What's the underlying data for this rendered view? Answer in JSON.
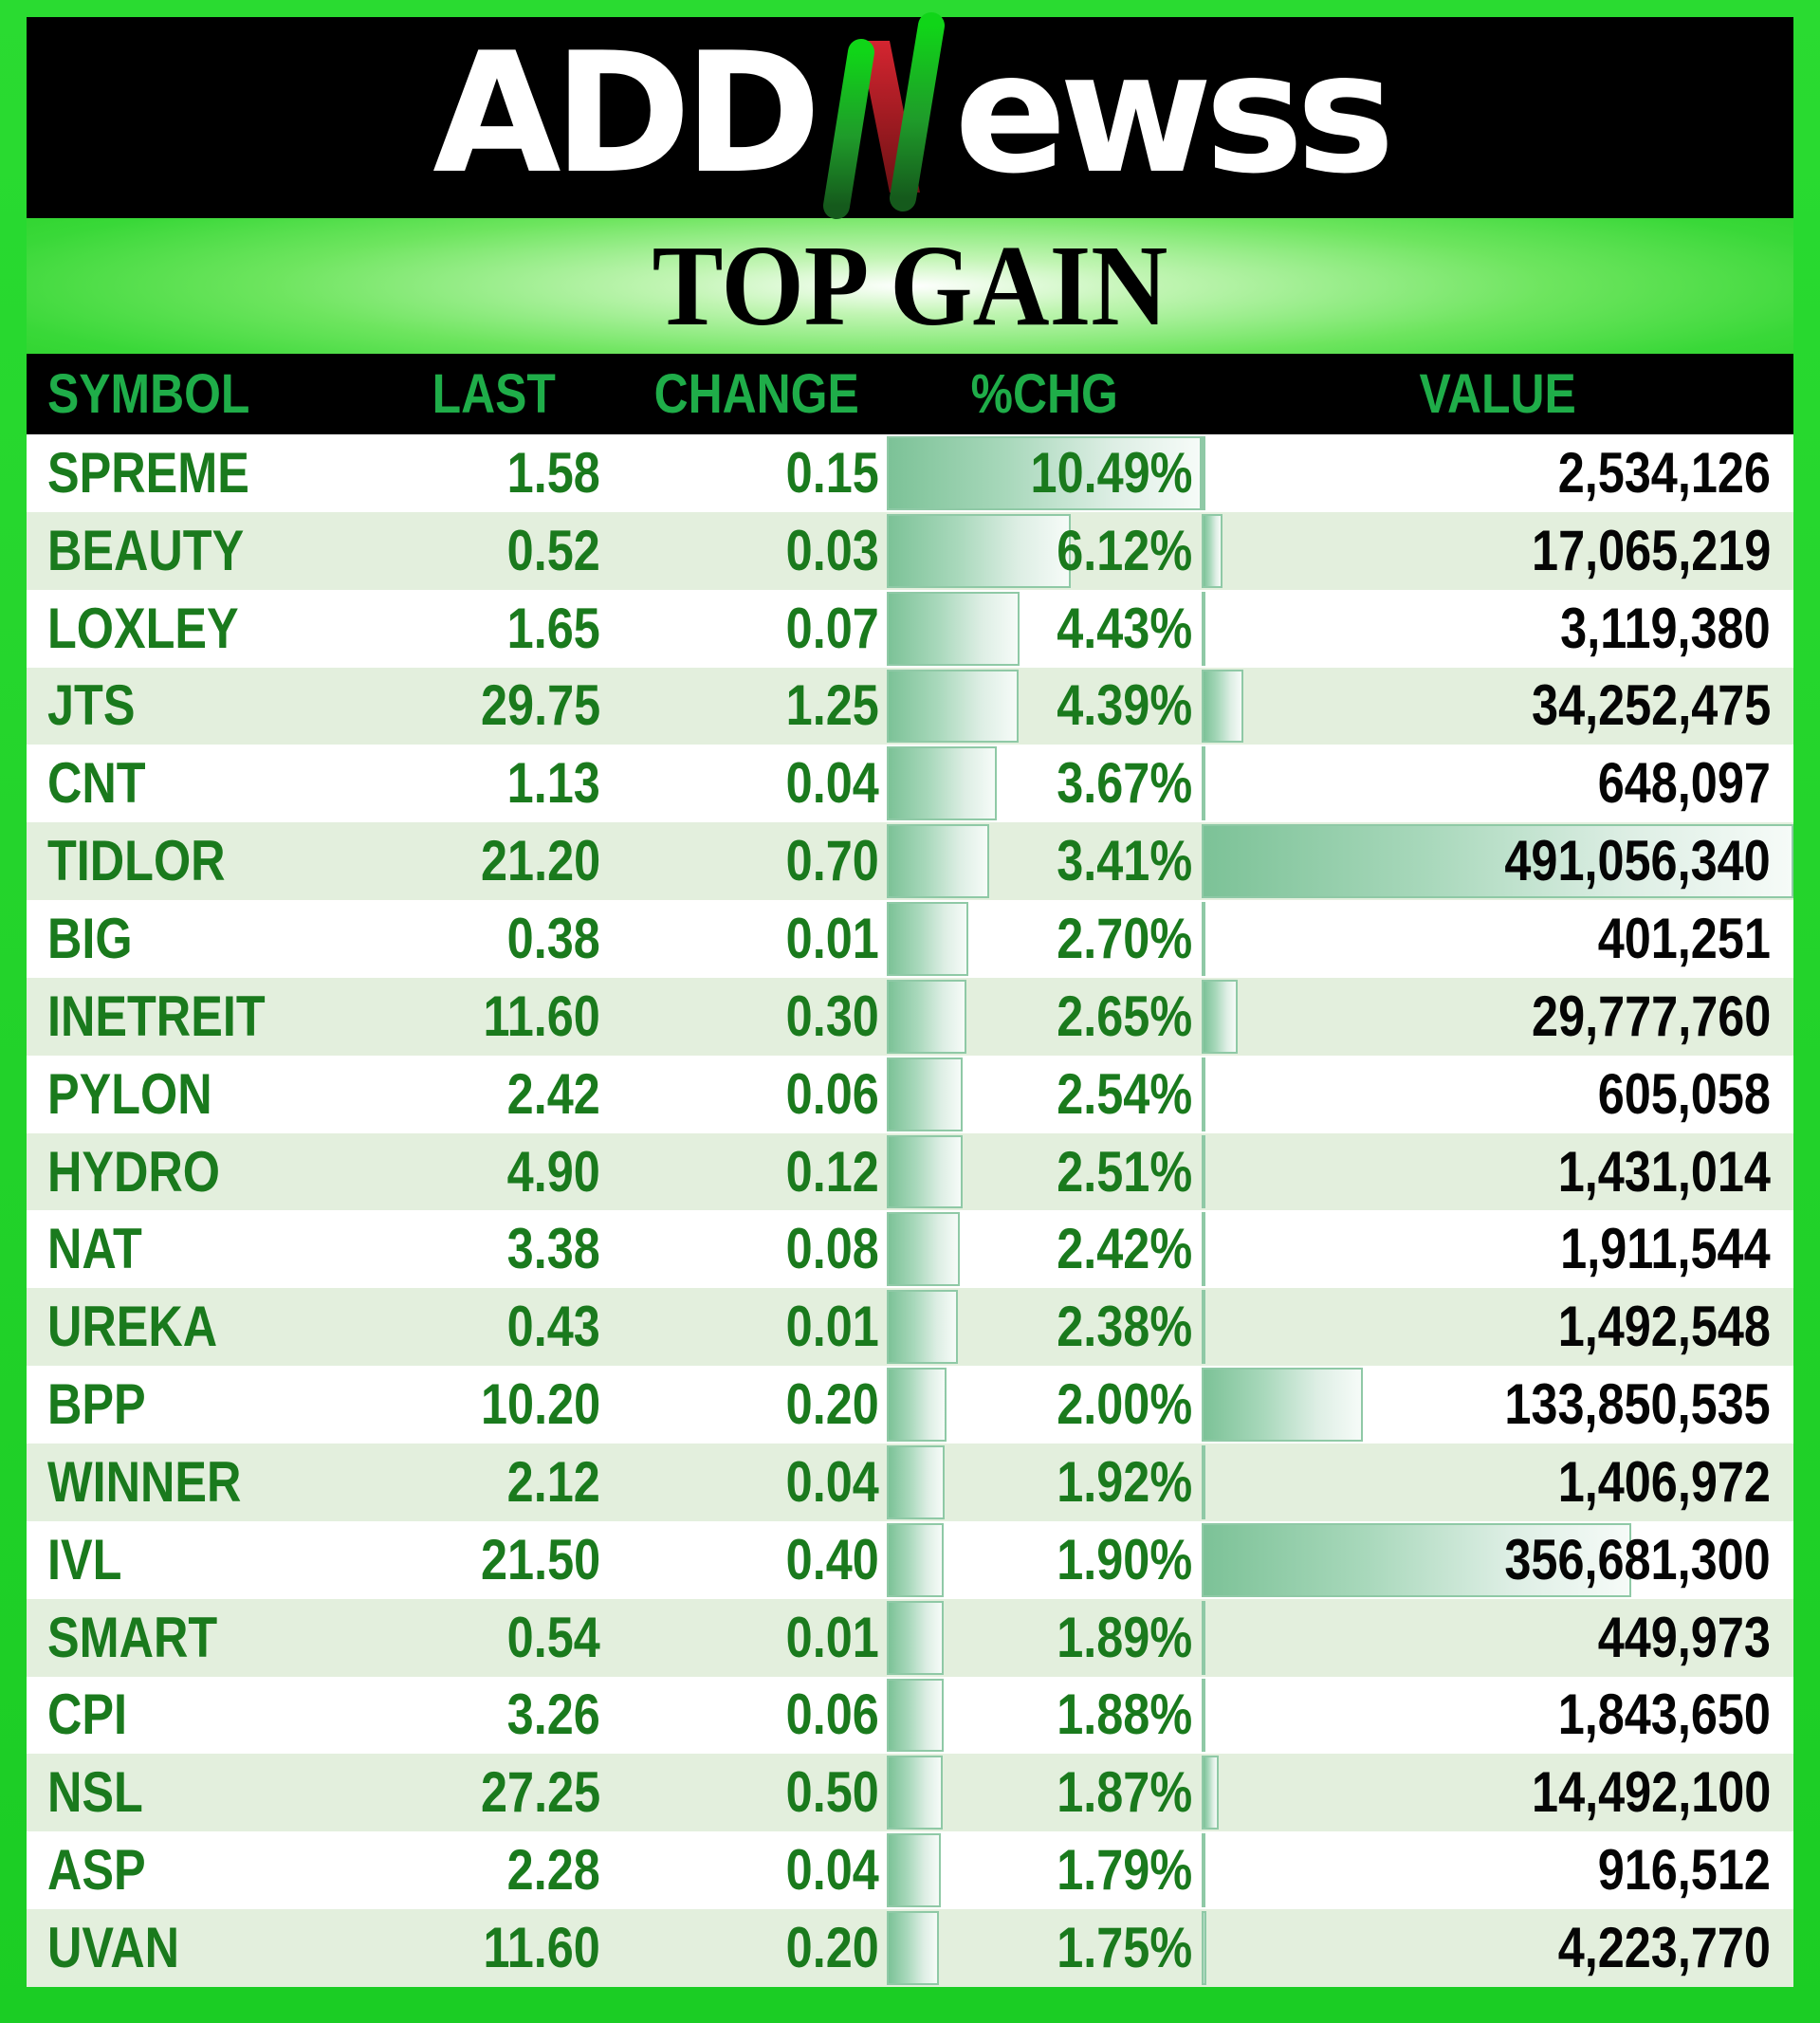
{
  "logo": {
    "text_prefix": "ADD",
    "n_letter": "N",
    "text_suffix": "ewss"
  },
  "chart_data": {
    "type": "table",
    "title": "TOP GAIN",
    "columns": [
      "SYMBOL",
      "LAST",
      "CHANGE",
      "%CHG",
      "VALUE"
    ],
    "rows": [
      {
        "symbol": "SPREME",
        "last": "1.58",
        "change": "0.15",
        "pct_chg": "10.49%",
        "value": "2,534,126"
      },
      {
        "symbol": "BEAUTY",
        "last": "0.52",
        "change": "0.03",
        "pct_chg": "6.12%",
        "value": "17,065,219"
      },
      {
        "symbol": "LOXLEY",
        "last": "1.65",
        "change": "0.07",
        "pct_chg": "4.43%",
        "value": "3,119,380"
      },
      {
        "symbol": "JTS",
        "last": "29.75",
        "change": "1.25",
        "pct_chg": "4.39%",
        "value": "34,252,475"
      },
      {
        "symbol": "CNT",
        "last": "1.13",
        "change": "0.04",
        "pct_chg": "3.67%",
        "value": "648,097"
      },
      {
        "symbol": "TIDLOR",
        "last": "21.20",
        "change": "0.70",
        "pct_chg": "3.41%",
        "value": "491,056,340"
      },
      {
        "symbol": "BIG",
        "last": "0.38",
        "change": "0.01",
        "pct_chg": "2.70%",
        "value": "401,251"
      },
      {
        "symbol": "INETREIT",
        "last": "11.60",
        "change": "0.30",
        "pct_chg": "2.65%",
        "value": "29,777,760"
      },
      {
        "symbol": "PYLON",
        "last": "2.42",
        "change": "0.06",
        "pct_chg": "2.54%",
        "value": "605,058"
      },
      {
        "symbol": "HYDRO",
        "last": "4.90",
        "change": "0.12",
        "pct_chg": "2.51%",
        "value": "1,431,014"
      },
      {
        "symbol": "NAT",
        "last": "3.38",
        "change": "0.08",
        "pct_chg": "2.42%",
        "value": "1,911,544"
      },
      {
        "symbol": "UREKA",
        "last": "0.43",
        "change": "0.01",
        "pct_chg": "2.38%",
        "value": "1,492,548"
      },
      {
        "symbol": "BPP",
        "last": "10.20",
        "change": "0.20",
        "pct_chg": "2.00%",
        "value": "133,850,535"
      },
      {
        "symbol": "WINNER",
        "last": "2.12",
        "change": "0.04",
        "pct_chg": "1.92%",
        "value": "1,406,972"
      },
      {
        "symbol": "IVL",
        "last": "21.50",
        "change": "0.40",
        "pct_chg": "1.90%",
        "value": "356,681,300"
      },
      {
        "symbol": "SMART",
        "last": "0.54",
        "change": "0.01",
        "pct_chg": "1.89%",
        "value": "449,973"
      },
      {
        "symbol": "CPI",
        "last": "3.26",
        "change": "0.06",
        "pct_chg": "1.88%",
        "value": "1,843,650"
      },
      {
        "symbol": "NSL",
        "last": "27.25",
        "change": "0.50",
        "pct_chg": "1.87%",
        "value": "14,492,100"
      },
      {
        "symbol": "ASP",
        "last": "2.28",
        "change": "0.04",
        "pct_chg": "1.79%",
        "value": "916,512"
      },
      {
        "symbol": "UVAN",
        "last": "11.60",
        "change": "0.20",
        "pct_chg": "1.75%",
        "value": "4,223,770"
      }
    ],
    "data_bars": {
      "pct_chg_scale": "bar width proportional to %CHG, max 10.49% = full column",
      "value_scale": "bar width proportional to VALUE, max 491,056,340 = full column"
    },
    "layout": {
      "legend": "none",
      "grid": "row-striping",
      "stripe_order": "white/green alternating"
    }
  },
  "colors": {
    "frame_green": "#22d22a",
    "banner_black": "#000000",
    "header_label_green": "#1fad49",
    "body_text_green": "#1a7a1d",
    "value_text_black": "#050505",
    "row_stripe_green": "#e3efdd",
    "data_bar_fill_start": "#7cc297",
    "data_bar_fill_end": "#f6fbf8",
    "data_bar_border": "#8fc9a6",
    "logo_n_green": "#12d41a",
    "logo_n_red": "#c92026"
  }
}
